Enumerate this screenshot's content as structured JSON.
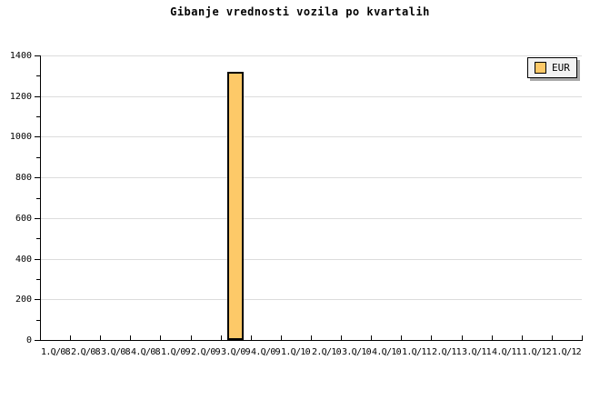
{
  "title": "Gibanje vrednosti vozila po kvartalih",
  "legend": {
    "label": "EUR"
  },
  "colors": {
    "background": "#FFFFFF",
    "bar_fill": "#FDC968",
    "bar_border": "#000000",
    "gridline": "#DCDCDC",
    "axis": "#000000",
    "legend_bg": "#F2F2F2",
    "legend_border": "#000000",
    "legend_shadow": "#A9A9A9"
  },
  "chart_data": {
    "type": "bar",
    "title": "Gibanje vrednosti vozila po kvartalih",
    "categories": [
      "1.Q/08",
      "2.Q/08",
      "3.Q/08",
      "4.Q/08",
      "1.Q/09",
      "2.Q/09",
      "3.Q/09",
      "4.Q/09",
      "1.Q/10",
      "2.Q/10",
      "3.Q/10",
      "4.Q/10",
      "1.Q/11",
      "2.Q/11",
      "3.Q/11",
      "4.Q/11",
      "1.Q/12",
      "1.Q/12"
    ],
    "series": [
      {
        "name": "EUR",
        "values": [
          null,
          null,
          null,
          null,
          null,
          null,
          1320,
          null,
          null,
          null,
          null,
          null,
          null,
          null,
          null,
          null,
          null,
          null
        ]
      }
    ],
    "xlabel": "",
    "ylabel": "",
    "ylim": [
      0,
      1400
    ],
    "yticks": [
      0,
      200,
      400,
      600,
      800,
      1000,
      1200,
      1400
    ],
    "ytick_step": 200,
    "minor_ytick_step": 100,
    "grid": true,
    "legend_position": "top-right"
  }
}
